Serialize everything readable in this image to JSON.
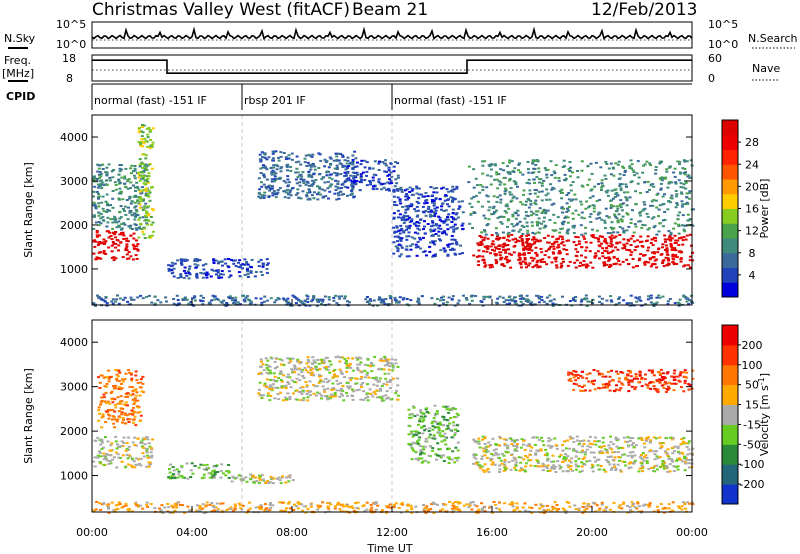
{
  "header": {
    "station": "Christmas Valley West (fitACF)",
    "beam": "Beam 21",
    "date": "12/Feb/2013"
  },
  "status": {
    "nsky_label": "N.Sky",
    "nsky_ticks": [
      "10^5",
      "10^0"
    ],
    "nsearch_label": "N.Search",
    "nsearch_ticks": [
      "10^5",
      "10^0"
    ],
    "freq_label": "Freq.",
    "freq_unit": "[MHz]",
    "freq_ticks": [
      "18",
      "8"
    ],
    "nave_label": "Nave",
    "nave_ticks": [
      "60",
      "0"
    ],
    "cpid_label": "CPID",
    "cpid_segments": [
      {
        "label": "normal (fast) -151 IF",
        "start": 0,
        "end": 6
      },
      {
        "label": "rbsp 201 IF",
        "start": 6,
        "end": 12
      },
      {
        "label": "normal (fast) -151 IF",
        "start": 12,
        "end": 24
      }
    ],
    "freq_series": [
      [
        0,
        16
      ],
      [
        3.0,
        16
      ],
      [
        3.0,
        11
      ],
      [
        15.0,
        11
      ],
      [
        15.0,
        16
      ],
      [
        24,
        16
      ]
    ]
  },
  "chart_data": [
    {
      "type": "heatmap",
      "name": "power",
      "ylabel": "Slant Range [km]",
      "ylim": [
        180,
        4500
      ],
      "yticks": [
        1000,
        2000,
        3000,
        4000
      ],
      "xlim": [
        0,
        24
      ],
      "colorbar": {
        "label": "Power [dB]",
        "ticks": [
          "28",
          "24",
          "20",
          "16",
          "12",
          "8",
          "4"
        ],
        "colors": [
          "#0000dd",
          "#2244bb",
          "#3a6a9a",
          "#3f8a7a",
          "#4aa24a",
          "#88cc22",
          "#ffcc00",
          "#ff9900",
          "#ff5500",
          "#ff2200",
          "#ee0000",
          "#dd0000"
        ]
      },
      "regions": [
        {
          "t0": 0.0,
          "t1": 1.8,
          "r0": 1200,
          "r1": 1900,
          "level": 11
        },
        {
          "t0": 0.0,
          "t1": 2.2,
          "r0": 1900,
          "r1": 3400,
          "level": 3
        },
        {
          "t0": 1.8,
          "t1": 2.4,
          "r0": 1700,
          "r1": 4300,
          "level": 5
        },
        {
          "t0": 3.0,
          "t1": 7.0,
          "r0": 800,
          "r1": 1250,
          "level": 1
        },
        {
          "t0": 6.6,
          "t1": 10.5,
          "r0": 2600,
          "r1": 3700,
          "level": 2
        },
        {
          "t0": 10.0,
          "t1": 12.2,
          "r0": 2800,
          "r1": 3500,
          "level": 1
        },
        {
          "t0": 12.0,
          "t1": 14.8,
          "r0": 1300,
          "r1": 2900,
          "level": 1
        },
        {
          "t0": 15.2,
          "t1": 24.0,
          "r0": 1050,
          "r1": 1800,
          "level": 11
        },
        {
          "t0": 15.0,
          "t1": 24.0,
          "r0": 1800,
          "r1": 3500,
          "level": 3
        },
        {
          "t0": 0.0,
          "t1": 24.0,
          "r0": 180,
          "r1": 420,
          "level": 2
        }
      ]
    },
    {
      "type": "heatmap",
      "name": "velocity",
      "ylabel": "Slant Range [km]",
      "ylim": [
        180,
        4500
      ],
      "yticks": [
        1000,
        2000,
        3000,
        4000
      ],
      "xlim": [
        0,
        24
      ],
      "colorbar": {
        "label": "Velocity [m s",
        "label_superscript": "-1",
        "label_close": "]",
        "ticks": [
          "200",
          "100",
          "50",
          "15",
          "-15",
          "-50",
          "-100",
          "-200"
        ],
        "colors": [
          "#1133cc",
          "#226677",
          "#2a8a3a",
          "#66cc22",
          "#aaaaaa",
          "#ffaa00",
          "#ff7700",
          "#ff3300",
          "#ee0000"
        ]
      },
      "regions": [
        {
          "t0": 0.0,
          "t1": 2.4,
          "r0": 1200,
          "r1": 1900,
          "level": 4
        },
        {
          "t0": 0.2,
          "t1": 2.0,
          "r0": 2100,
          "r1": 3400,
          "level": 6
        },
        {
          "t0": 3.0,
          "t1": 5.5,
          "r0": 950,
          "r1": 1300,
          "level": 3
        },
        {
          "t0": 5.5,
          "t1": 8.0,
          "r0": 850,
          "r1": 1050,
          "level": 4
        },
        {
          "t0": 6.6,
          "t1": 12.2,
          "r0": 2700,
          "r1": 3700,
          "level": 4
        },
        {
          "t0": 12.6,
          "t1": 14.6,
          "r0": 1300,
          "r1": 2600,
          "level": 3
        },
        {
          "t0": 15.2,
          "t1": 24.0,
          "r0": 1100,
          "r1": 1900,
          "level": 4
        },
        {
          "t0": 19.0,
          "t1": 24.0,
          "r0": 2900,
          "r1": 3400,
          "level": 7
        },
        {
          "t0": 0.0,
          "t1": 24.0,
          "r0": 180,
          "r1": 430,
          "level": 5
        }
      ]
    }
  ],
  "xaxis": {
    "label": "Time UT",
    "ticks": [
      "00:00",
      "04:00",
      "08:00",
      "12:00",
      "16:00",
      "20:00",
      "00:00"
    ]
  }
}
